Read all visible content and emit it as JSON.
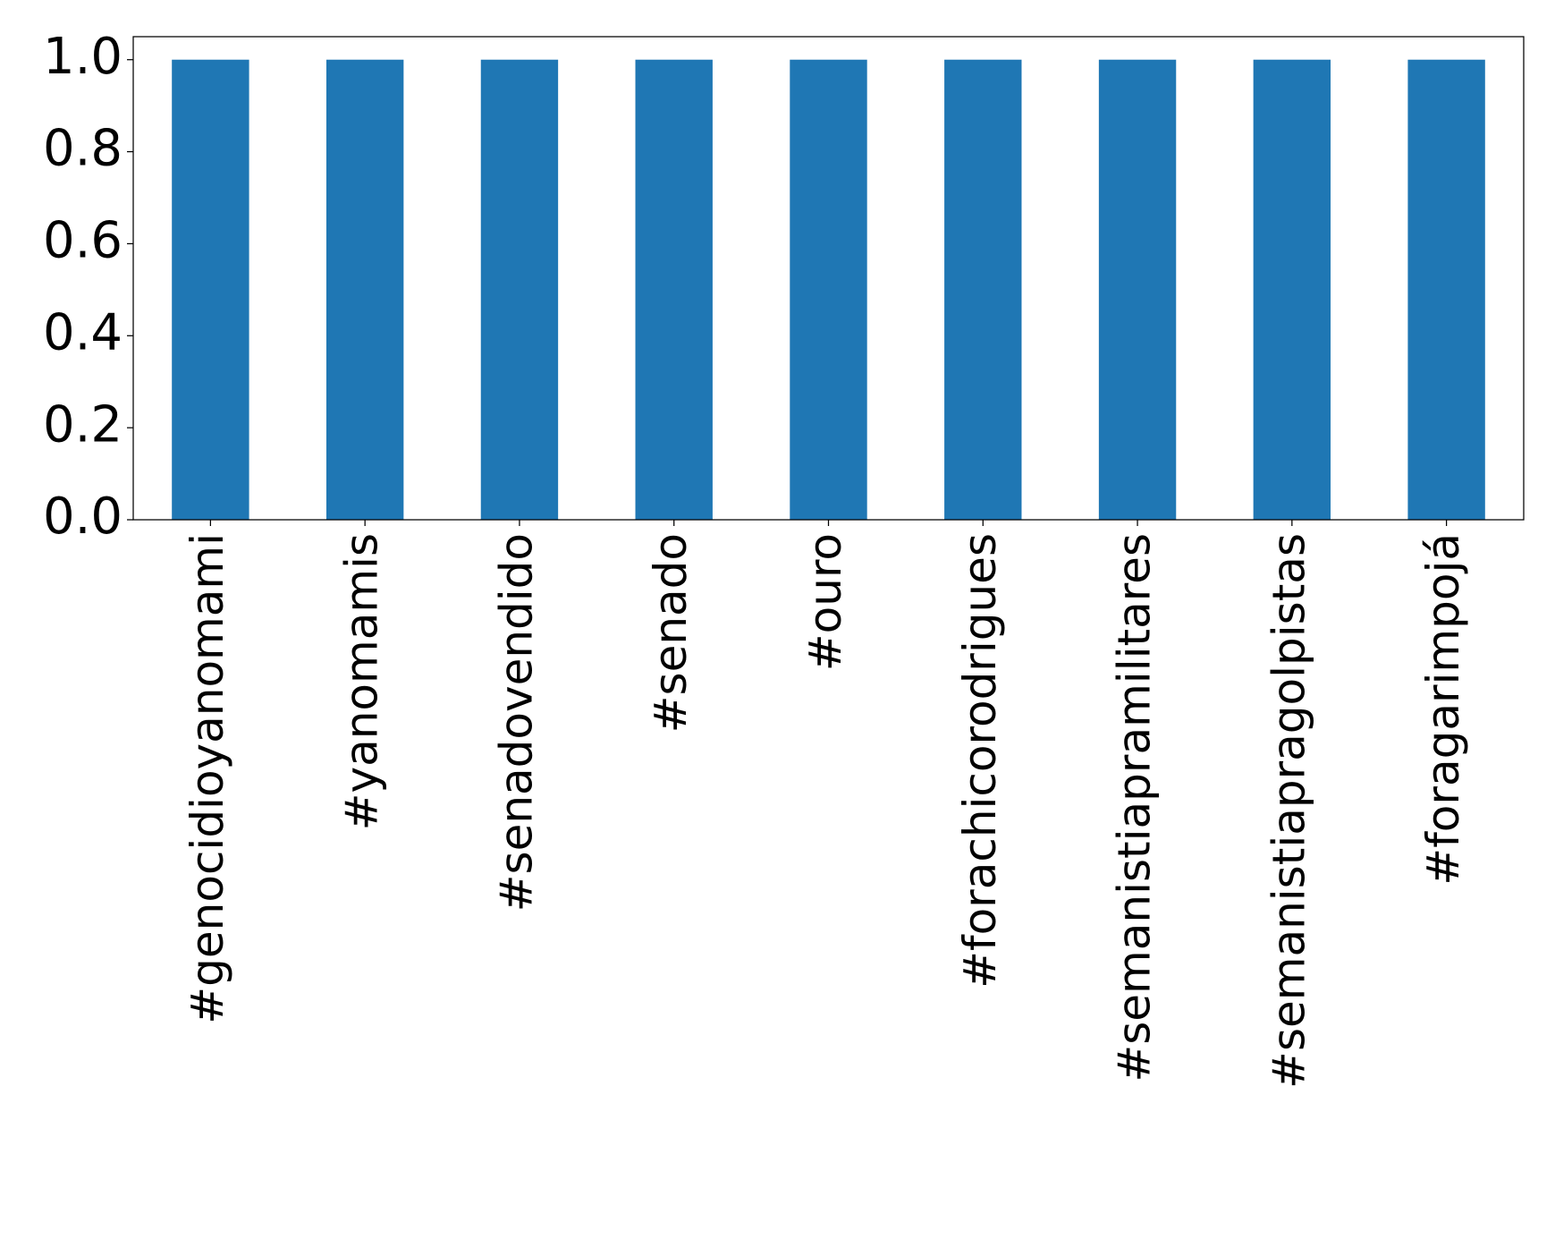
{
  "chart_data": {
    "type": "bar",
    "title": "",
    "xlabel": "",
    "ylabel": "",
    "categories": [
      "#genocidioyanomami",
      "#yanomamis",
      "#senadovendido",
      "#senado",
      "#ouro",
      "#forachicorodrigues",
      "#semanistiapramilitares",
      "#semanistiapragolpistas",
      "#foragarimpojá"
    ],
    "values": [
      1.0,
      1.0,
      1.0,
      1.0,
      1.0,
      1.0,
      1.0,
      1.0,
      1.0
    ],
    "ylim": [
      0,
      1.05
    ],
    "yticks": [
      "0.0",
      "0.2",
      "0.4",
      "0.6",
      "0.8",
      "1.0"
    ],
    "bar_color": "#1f77b4",
    "grid": false,
    "legend": "none"
  }
}
